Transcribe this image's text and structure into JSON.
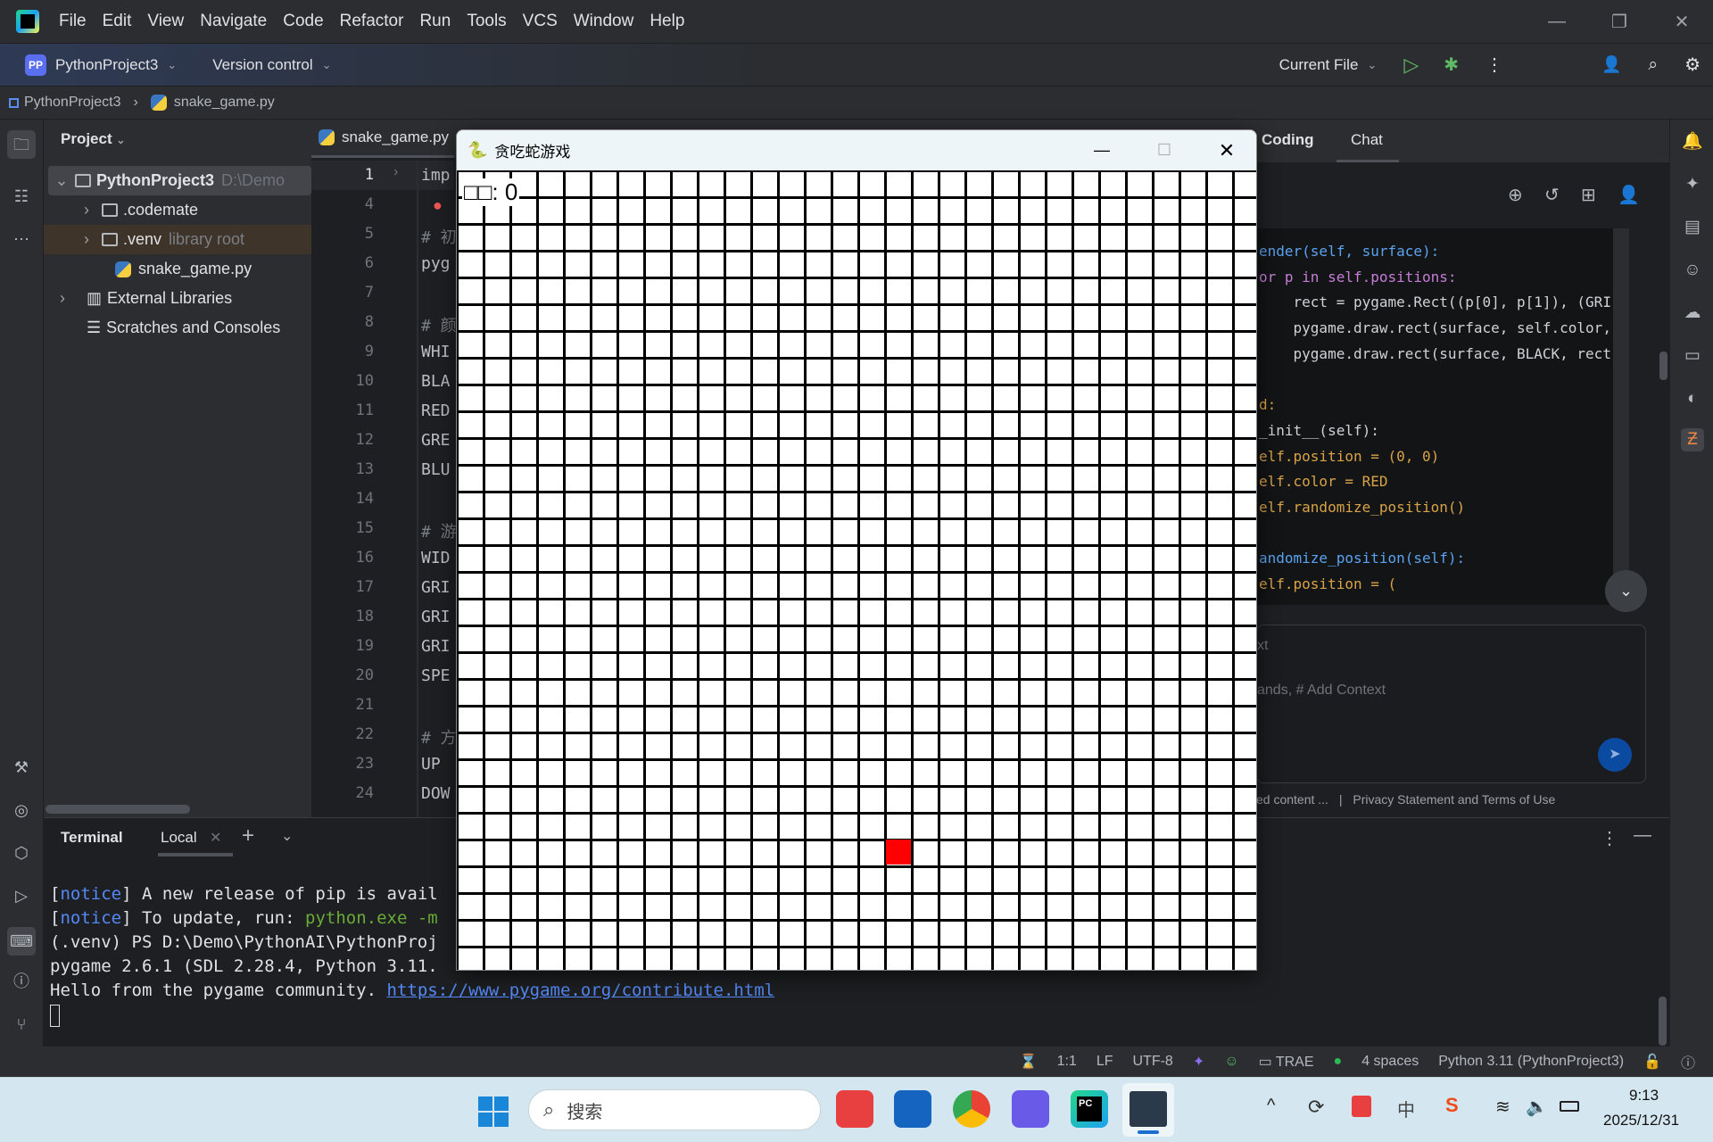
{
  "menu": {
    "items": [
      "File",
      "Edit",
      "View",
      "Navigate",
      "Code",
      "Refactor",
      "Run",
      "Tools",
      "VCS",
      "Window",
      "Help"
    ]
  },
  "toolbar": {
    "project_badge": "PP",
    "project": "PythonProject3",
    "vcs": "Version control",
    "run_config": "Current File"
  },
  "breadcrumb": {
    "project": "PythonProject3",
    "file": "snake_game.py"
  },
  "project_panel": {
    "title": "Project",
    "root": "PythonProject3",
    "root_path": "D:\\Demo",
    "items": [
      ".codemate",
      ".venv",
      "snake_game.py",
      "External Libraries",
      "Scratches and Consoles"
    ],
    "venv_hint": "library root"
  },
  "editor": {
    "tab": "snake_game.py",
    "line_numbers": [
      "1",
      "4",
      "5",
      "6",
      "7",
      "8",
      "9",
      "10",
      "11",
      "12",
      "13",
      "14",
      "15",
      "16",
      "17",
      "18",
      "19",
      "20",
      "21",
      "22",
      "23",
      "24"
    ],
    "lines": [
      "imp",
      "",
      "# 初",
      "pyg",
      "",
      "# 颜",
      "WHI",
      "BLA",
      "RED",
      "GRE",
      "BLU",
      "",
      "# 游",
      "WID",
      "GRI",
      "GRI",
      "GRI",
      "SPE",
      "",
      "# 方",
      "UP",
      "DOW"
    ]
  },
  "chat": {
    "tabs": [
      "Coding",
      "Chat"
    ],
    "active_tab": "Chat",
    "code": [
      "ender(self, surface):",
      "or p in self.positions:",
      "    rect = pygame.Rect((p[0], p[1]), (GRI",
      "    pygame.draw.rect(surface, self.color,",
      "    pygame.draw.rect(surface, BLACK, rect",
      "",
      "d:",
      "_init__(self):",
      "elf.position = (0, 0)",
      "elf.color = RED",
      "elf.randomize_position()",
      "",
      "andomize_position(self):",
      "elf.position = ("
    ],
    "input_placeholder_1": "xt",
    "input_placeholder_2": "ands, # Add Context",
    "footer_left": "ed content ...",
    "footer_sep": "|",
    "footer_link": "Privacy Statement and Terms of Use"
  },
  "terminal": {
    "title": "Terminal",
    "tab": "Local",
    "lines": [
      {
        "parts": [
          "[",
          "notice",
          "] A new release of pip is avail"
        ]
      },
      {
        "parts": [
          "[",
          "notice",
          "] To update, run: ",
          "python.exe -m"
        ]
      },
      {
        "text": "(.venv) PS D:\\Demo\\PythonAI\\PythonProj"
      },
      {
        "text": "pygame 2.6.1 (SDL 2.28.4, Python 3.11."
      },
      {
        "text": "Hello from the pygame community. ",
        "link": "https://www.pygame.org/contribute.html"
      }
    ]
  },
  "game": {
    "title": "贪吃蛇游戏",
    "score_label": "□□: 0",
    "grid_cols": 30,
    "grid_rows": 30,
    "food": {
      "col": 16,
      "row": 25
    },
    "food_color": "#ff0000"
  },
  "statusbar": {
    "position": "1:1",
    "line_sep": "LF",
    "encoding": "UTF-8",
    "trae": "TRAE",
    "indent": "4 spaces",
    "interpreter": "Python 3.11 (PythonProject3)"
  },
  "taskbar": {
    "search_placeholder": "搜索",
    "time": "9:13",
    "date": "2025/12/31"
  }
}
